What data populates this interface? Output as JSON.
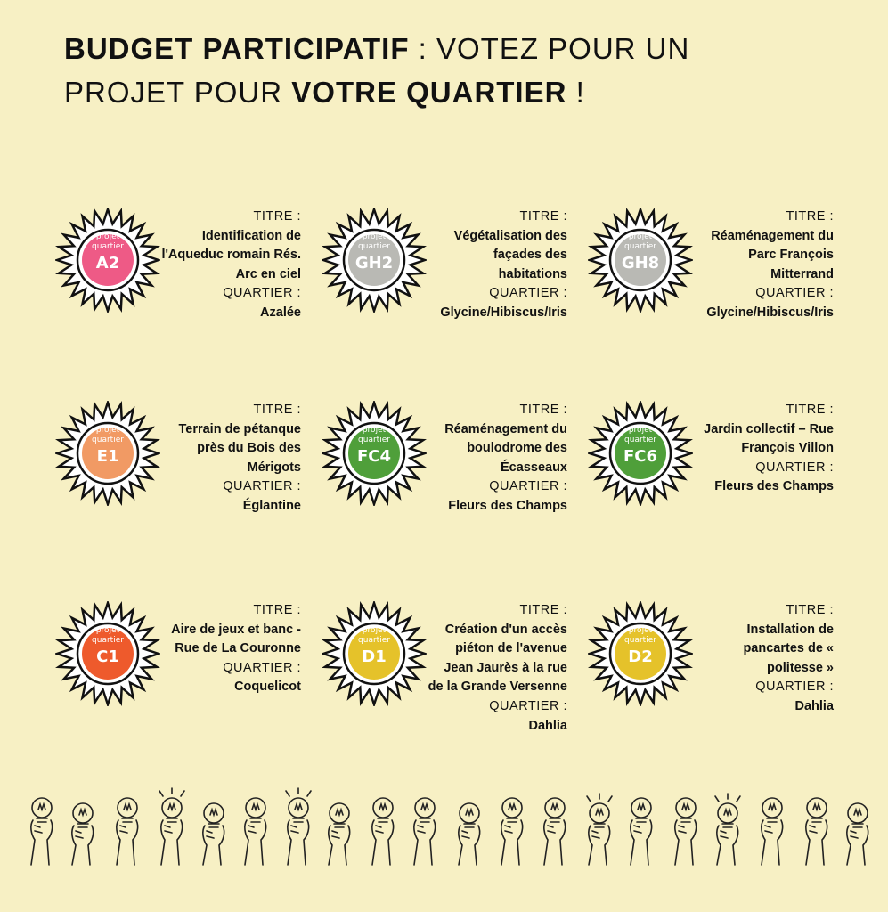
{
  "header": {
    "title_bold_1": "BUDGET PARTICIPATIF",
    "title_normal_1": " : VOTEZ POUR UN",
    "title_normal_2": "PROJET POUR ",
    "title_bold_2": "VOTRE QUARTIER",
    "title_normal_3": " !"
  },
  "labels": {
    "titre": "TITRE :",
    "quartier": "QUARTIER :"
  },
  "badge_small_1": "projet",
  "badge_small_2": "quartier",
  "projects": [
    {
      "code": "A2",
      "color": "#ee5a86",
      "title": "Identification de l'Aqueduc romain Rés. Arc en ciel",
      "quartier": "Azalée"
    },
    {
      "code": "GH2",
      "color": "#b9b9b4",
      "title": "Végétalisation des façades des habitations",
      "quartier": "Glycine/Hibiscus/Iris"
    },
    {
      "code": "GH8",
      "color": "#b9b9b4",
      "title": "Réaménagement du Parc François Mitterrand",
      "quartier": "Glycine/Hibiscus/Iris"
    },
    {
      "code": "E1",
      "color": "#f19a64",
      "title": "Terrain de pétanque près du Bois des Mérigots",
      "quartier": "Églantine"
    },
    {
      "code": "FC4",
      "color": "#4f9f3a",
      "title": "Réaménagement du boulodrome des Écasseaux",
      "quartier": "Fleurs des Champs"
    },
    {
      "code": "FC6",
      "color": "#4f9f3a",
      "title": "Jardin collectif – Rue François Villon",
      "quartier": "Fleurs des Champs"
    },
    {
      "code": "C1",
      "color": "#ee5a2c",
      "title": "Aire de jeux et banc - Rue de La Couronne",
      "quartier": "Coquelicot"
    },
    {
      "code": "D1",
      "color": "#e5c22a",
      "title": "Création d'un accès piéton de l'avenue Jean Jaurès à la rue de la Grande Versenne",
      "quartier": "Dahlia"
    },
    {
      "code": "D2",
      "color": "#e5c22a",
      "title": "Installation de pancartes de « politesse »",
      "quartier": "Dahlia"
    }
  ],
  "decoration": {
    "footer_icon": "hands-holding-lightbulbs-icon"
  }
}
